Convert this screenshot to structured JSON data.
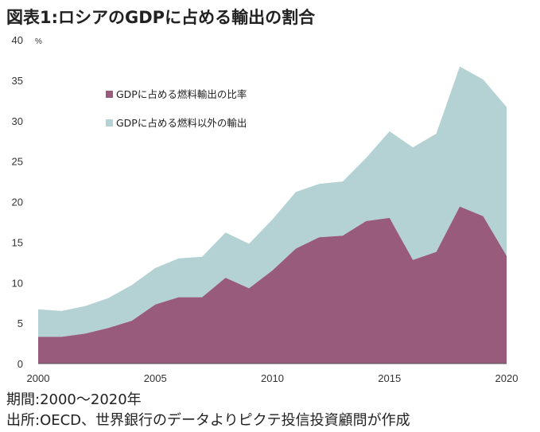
{
  "title": "図表1:ロシアのGDPに占める輸出の割合",
  "footer": {
    "period": "期間:2000〜2020年",
    "source": "出所:OECD、世界銀行のデータよりピクテ投信投資顧問が作成"
  },
  "colors": {
    "fuel": "#995b7c",
    "nonfuel": "#b4d2d4"
  },
  "chart_data": {
    "type": "area",
    "stacked": true,
    "x": [
      2000,
      2001,
      2002,
      2003,
      2004,
      2005,
      2006,
      2007,
      2008,
      2009,
      2010,
      2011,
      2012,
      2013,
      2014,
      2015,
      2016,
      2017,
      2018,
      2019,
      2020
    ],
    "series": [
      {
        "name": "GDPに占める燃料輸出の比率",
        "values": [
          3.3,
          3.3,
          3.7,
          4.4,
          5.3,
          7.3,
          8.2,
          8.2,
          10.6,
          9.3,
          11.5,
          14.2,
          15.6,
          15.8,
          17.6,
          18.0,
          12.8,
          13.8,
          19.4,
          18.2,
          13.3
        ]
      },
      {
        "name": "GDPに占める燃料以外の輸出",
        "values": [
          3.4,
          3.2,
          3.4,
          3.7,
          4.4,
          4.5,
          4.8,
          5.0,
          5.6,
          5.5,
          6.3,
          7.0,
          6.6,
          6.7,
          7.8,
          10.7,
          13.9,
          14.6,
          17.3,
          16.9,
          18.4
        ]
      }
    ],
    "ylim": [
      0,
      40
    ],
    "yticks": [
      0,
      5,
      10,
      15,
      20,
      25,
      30,
      35,
      40
    ],
    "xticks": [
      2000,
      2005,
      2010,
      2015,
      2020
    ],
    "yunit": "%",
    "legend_position": "upper-left inside"
  }
}
